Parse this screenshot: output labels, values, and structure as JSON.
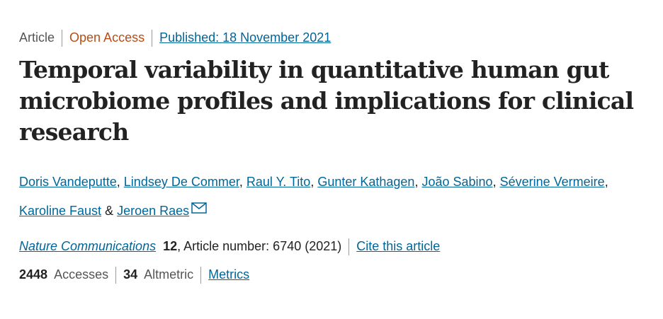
{
  "header": {
    "type": "Article",
    "access": "Open Access",
    "published": "Published: 18 November 2021"
  },
  "title": "Temporal variability in quantitative human gut microbiome profiles and implications for clinical research",
  "authors": {
    "names": [
      "Doris Vandeputte",
      "Lindsey De Commer",
      "Raul Y. Tito",
      "Gunter Kathagen",
      "João Sabino",
      "Séverine Vermeire",
      "Karoline Faust",
      "Jeroen Raes"
    ],
    "separator": ",",
    "conjunction": "&"
  },
  "citation": {
    "journal": "Nature Communications",
    "volume": 12,
    "article": ", Article number: 6740 (2021)",
    "cite": "Cite this article"
  },
  "metrics": {
    "accesses": 2448,
    "accesses_label": "Accesses",
    "altmetric": 34,
    "altmetric_label": "Altmetric",
    "link": "Metrics"
  }
}
